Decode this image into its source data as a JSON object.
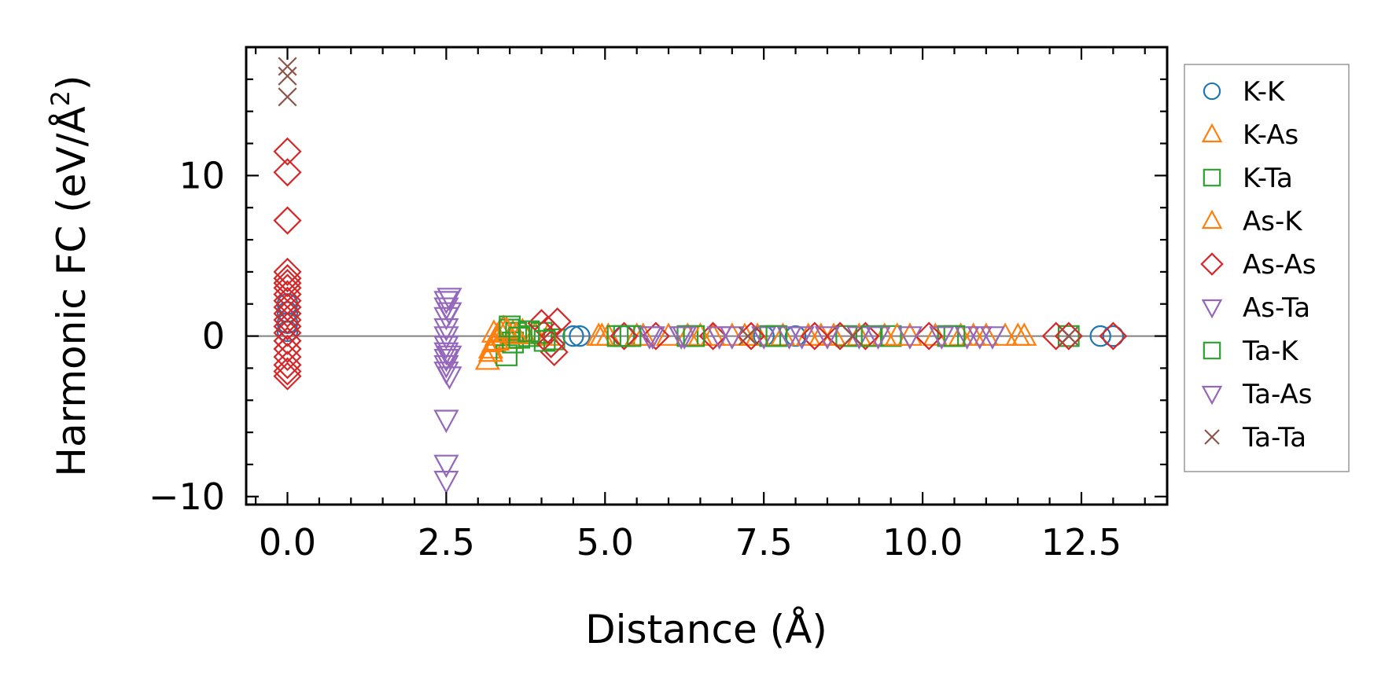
{
  "chart_data": {
    "type": "scatter",
    "xlabel": "Distance (Å)",
    "ylabel_main": "Harmonic FC (eV/Å",
    "ylabel_sup": "2",
    "ylabel_close": ")",
    "xlim": [
      -0.65,
      13.85
    ],
    "ylim": [
      -10.5,
      18.0
    ],
    "xticks": [
      0.0,
      2.5,
      5.0,
      7.5,
      10.0,
      12.5
    ],
    "xtick_labels": [
      "0.0",
      "2.5",
      "5.0",
      "7.5",
      "10.0",
      "12.5"
    ],
    "yticks": [
      -10,
      0,
      10
    ],
    "ytick_labels": [
      "−10",
      "0",
      "10"
    ],
    "hline": 0,
    "legend_position": "right, outside axes",
    "series": [
      {
        "name": "K-K",
        "marker": "circle",
        "color": "#1f77b4",
        "points": [
          [
            0.0,
            0.3
          ],
          [
            0.0,
            0.8
          ],
          [
            0.0,
            1.5
          ],
          [
            0.0,
            2.0
          ],
          [
            4.5,
            0.0
          ],
          [
            4.6,
            0.0
          ],
          [
            5.3,
            0.0
          ],
          [
            7.5,
            0.0
          ],
          [
            8.0,
            0.0
          ],
          [
            12.8,
            0.0
          ],
          [
            13.0,
            0.0
          ]
        ]
      },
      {
        "name": "K-As",
        "marker": "triangle-up",
        "color": "#ff7f0e",
        "points": [
          [
            3.15,
            -1.5
          ],
          [
            3.2,
            -0.8
          ],
          [
            3.25,
            -0.4
          ],
          [
            3.3,
            0.0
          ],
          [
            3.35,
            0.3
          ],
          [
            3.4,
            0.5
          ],
          [
            3.5,
            -0.2
          ],
          [
            3.55,
            0.2
          ],
          [
            3.7,
            0.3
          ],
          [
            3.9,
            0.1
          ],
          [
            4.1,
            0.0
          ],
          [
            4.9,
            0.0
          ],
          [
            5.05,
            0.0
          ],
          [
            5.5,
            0.0
          ],
          [
            6.0,
            0.0
          ],
          [
            6.3,
            0.0
          ],
          [
            6.7,
            0.0
          ],
          [
            7.0,
            0.0
          ],
          [
            7.4,
            0.0
          ],
          [
            7.8,
            0.0
          ],
          [
            8.2,
            0.0
          ],
          [
            8.6,
            0.0
          ],
          [
            9.0,
            0.0
          ],
          [
            9.4,
            0.0
          ],
          [
            9.8,
            0.0
          ],
          [
            10.2,
            0.0
          ],
          [
            10.6,
            0.0
          ],
          [
            11.0,
            0.0
          ],
          [
            11.3,
            0.0
          ],
          [
            11.6,
            0.0
          ]
        ]
      },
      {
        "name": "K-Ta",
        "marker": "square",
        "color": "#2ca02c",
        "points": [
          [
            3.45,
            -1.2
          ],
          [
            3.5,
            0.4
          ],
          [
            3.55,
            -0.4
          ],
          [
            3.6,
            0.2
          ],
          [
            3.8,
            0.0
          ],
          [
            4.0,
            0.2
          ],
          [
            4.2,
            -0.2
          ],
          [
            5.3,
            0.0
          ],
          [
            6.3,
            0.0
          ],
          [
            7.6,
            0.0
          ],
          [
            8.8,
            0.0
          ],
          [
            9.5,
            0.0
          ],
          [
            10.4,
            0.0
          ],
          [
            12.3,
            0.0
          ]
        ]
      },
      {
        "name": "As-K",
        "marker": "triangle-up",
        "color": "#ff7f0e",
        "points": [
          [
            3.2,
            -1.0
          ],
          [
            3.25,
            0.2
          ],
          [
            3.3,
            -0.3
          ],
          [
            3.45,
            0.4
          ],
          [
            3.6,
            0.1
          ],
          [
            4.95,
            0.0
          ],
          [
            5.6,
            0.0
          ],
          [
            6.5,
            0.0
          ],
          [
            7.2,
            0.0
          ],
          [
            8.4,
            0.0
          ],
          [
            9.6,
            0.0
          ],
          [
            10.8,
            0.0
          ],
          [
            11.5,
            0.0
          ]
        ]
      },
      {
        "name": "As-As",
        "marker": "diamond",
        "color": "#d62728",
        "points": [
          [
            0.0,
            11.5
          ],
          [
            0.0,
            10.2
          ],
          [
            0.0,
            7.2
          ],
          [
            0.0,
            4.0
          ],
          [
            0.0,
            3.6
          ],
          [
            0.0,
            3.3
          ],
          [
            0.0,
            3.0
          ],
          [
            0.0,
            2.6
          ],
          [
            0.0,
            2.2
          ],
          [
            0.0,
            1.8
          ],
          [
            0.0,
            1.4
          ],
          [
            0.0,
            1.0
          ],
          [
            0.0,
            0.6
          ],
          [
            0.0,
            0.2
          ],
          [
            0.0,
            -0.3
          ],
          [
            0.0,
            -0.8
          ],
          [
            0.0,
            -1.3
          ],
          [
            0.0,
            -1.8
          ],
          [
            0.0,
            -2.2
          ],
          [
            0.0,
            -2.5
          ],
          [
            4.0,
            0.8
          ],
          [
            4.1,
            0.4
          ],
          [
            4.15,
            -0.5
          ],
          [
            4.2,
            -1.0
          ],
          [
            4.25,
            0.9
          ],
          [
            5.3,
            0.0
          ],
          [
            5.8,
            0.0
          ],
          [
            6.7,
            0.0
          ],
          [
            7.3,
            0.0
          ],
          [
            8.3,
            0.0
          ],
          [
            8.7,
            0.0
          ],
          [
            9.1,
            0.0
          ],
          [
            10.1,
            0.0
          ],
          [
            12.1,
            0.0
          ],
          [
            12.3,
            0.0
          ],
          [
            13.0,
            0.0
          ]
        ]
      },
      {
        "name": "As-Ta",
        "marker": "triangle-down",
        "color": "#9467bd",
        "points": [
          [
            2.5,
            2.2
          ],
          [
            2.5,
            1.8
          ],
          [
            2.5,
            1.2
          ],
          [
            2.5,
            0.5
          ],
          [
            2.5,
            0.0
          ],
          [
            2.5,
            -0.6
          ],
          [
            2.5,
            -1.0
          ],
          [
            2.5,
            -1.4
          ],
          [
            2.5,
            -1.8
          ],
          [
            2.5,
            -2.2
          ],
          [
            2.5,
            -5.2
          ],
          [
            2.5,
            -8.0
          ],
          [
            2.5,
            -9.0
          ],
          [
            5.7,
            0.0
          ],
          [
            6.2,
            0.0
          ],
          [
            6.8,
            0.0
          ],
          [
            7.5,
            0.0
          ],
          [
            8.1,
            0.0
          ],
          [
            9.0,
            0.0
          ],
          [
            9.8,
            0.0
          ],
          [
            10.7,
            0.0
          ],
          [
            11.1,
            0.0
          ]
        ]
      },
      {
        "name": "Ta-K",
        "marker": "square",
        "color": "#2ca02c",
        "points": [
          [
            3.5,
            0.6
          ],
          [
            3.65,
            -0.1
          ],
          [
            3.8,
            0.3
          ],
          [
            4.05,
            -0.3
          ],
          [
            5.2,
            0.0
          ],
          [
            5.4,
            0.0
          ],
          [
            6.4,
            0.0
          ],
          [
            7.7,
            0.0
          ],
          [
            9.2,
            0.0
          ],
          [
            10.5,
            0.0
          ]
        ]
      },
      {
        "name": "Ta-As",
        "marker": "triangle-down",
        "color": "#9467bd",
        "points": [
          [
            2.55,
            2.4
          ],
          [
            2.55,
            1.5
          ],
          [
            2.55,
            -1.2
          ],
          [
            2.55,
            -2.5
          ],
          [
            5.75,
            0.0
          ],
          [
            6.25,
            0.0
          ],
          [
            7.0,
            0.0
          ],
          [
            7.9,
            0.0
          ],
          [
            8.5,
            0.0
          ],
          [
            9.3,
            0.0
          ],
          [
            10.3,
            0.0
          ],
          [
            10.9,
            0.0
          ]
        ]
      },
      {
        "name": "Ta-Ta",
        "marker": "x",
        "color": "#8c564b",
        "points": [
          [
            0.0,
            16.8
          ],
          [
            0.0,
            16.2
          ],
          [
            0.0,
            14.9
          ],
          [
            7.25,
            0.0
          ],
          [
            8.9,
            0.0
          ],
          [
            12.3,
            0.0
          ]
        ]
      }
    ]
  }
}
